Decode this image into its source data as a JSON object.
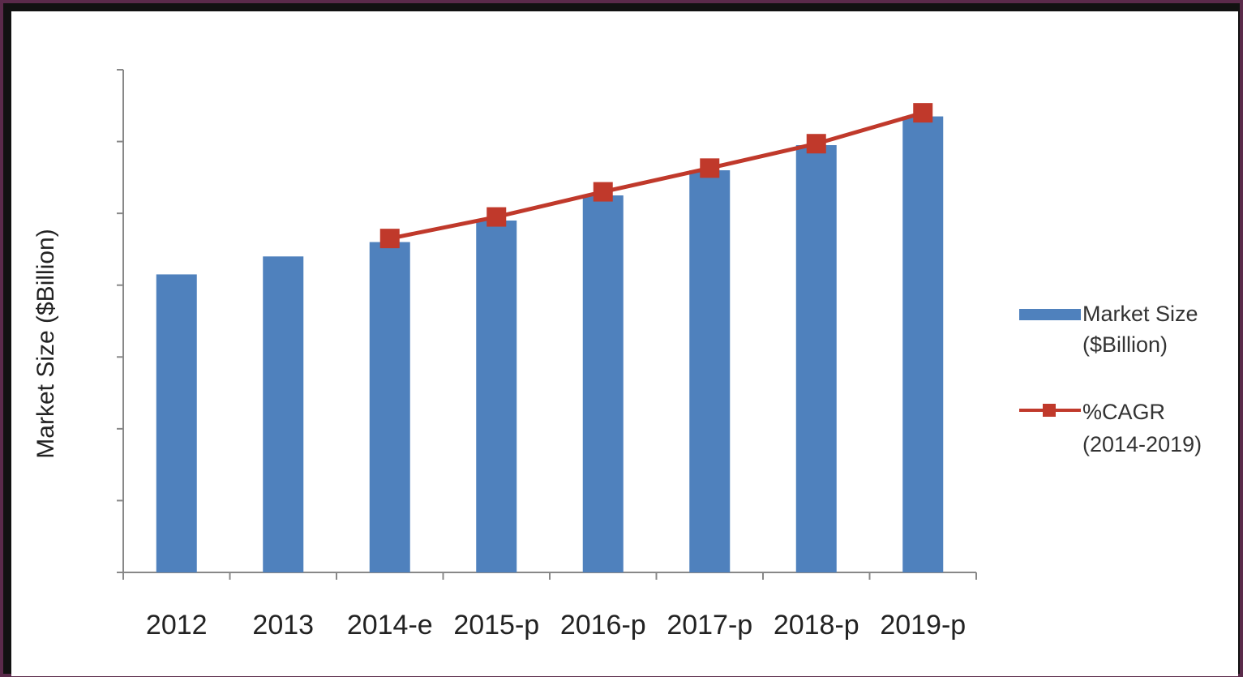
{
  "chart_data": {
    "type": "bar",
    "title": "",
    "xlabel": "",
    "ylabel": "Market Size  ($Billion)",
    "categories": [
      "2012",
      "2013",
      "2014-e",
      "2015-p",
      "2016-p",
      "2017-p",
      "2018-p",
      "2019-p"
    ],
    "ylim": [
      0,
      7
    ],
    "y_ticks_labeled": false,
    "grid": false,
    "legend_position": "right",
    "series": [
      {
        "name": "Market Size ($Billion)",
        "type": "bar",
        "color": "#4f81bd",
        "values": [
          4.15,
          4.4,
          4.6,
          4.9,
          5.25,
          5.6,
          5.95,
          6.35
        ]
      },
      {
        "name": "%CAGR (2014-2019)",
        "type": "line",
        "color": "#c0392b",
        "marker": "square",
        "values": [
          null,
          null,
          4.65,
          4.95,
          5.3,
          5.63,
          5.97,
          6.4
        ]
      }
    ],
    "legend": {
      "bar_label_line1": "Market Size",
      "bar_label_line2": "($Billion)",
      "line_label_line1": "%CAGR",
      "line_label_line2": "(2014-2019)"
    }
  }
}
